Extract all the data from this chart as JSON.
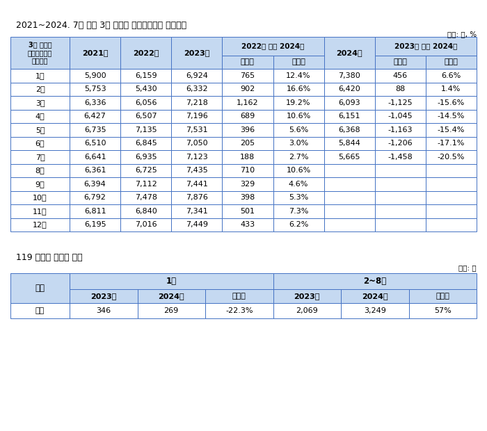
{
  "title1": "2021~2024. 7월 월별 3대 급성기 중증응급질환 진료건수",
  "unit1": "단위: 건, %",
  "title2": "119 구급대 재이송 현황",
  "unit2": "단위: 건",
  "header_col0": "3대 급성기\n중증응급환자\n진료건수",
  "header_yr2021": "2021년",
  "header_yr2022": "2022년",
  "header_yr2023": "2023년",
  "header_group1": "2022년 대비 2024년",
  "header_g1c1": "증감치",
  "header_g1c2": "증감률",
  "header_yr2024": "2024년",
  "header_group2": "2023년 대비 2024년",
  "header_g2c1": "증감치",
  "header_g2c2": "증감률",
  "table1_data": [
    [
      "1월",
      "5,900",
      "6,159",
      "6,924",
      "765",
      "12.4%",
      "7,380",
      "456",
      "6.6%"
    ],
    [
      "2월",
      "5,753",
      "5,430",
      "6,332",
      "902",
      "16.6%",
      "6,420",
      "88",
      "1.4%"
    ],
    [
      "3월",
      "6,336",
      "6,056",
      "7,218",
      "1,162",
      "19.2%",
      "6,093",
      "-1,125",
      "-15.6%"
    ],
    [
      "4월",
      "6,427",
      "6,507",
      "7,196",
      "689",
      "10.6%",
      "6,151",
      "-1,045",
      "-14.5%"
    ],
    [
      "5월",
      "6,735",
      "7,135",
      "7,531",
      "396",
      "5.6%",
      "6,368",
      "-1,163",
      "-15.4%"
    ],
    [
      "6월",
      "6,510",
      "6,845",
      "7,050",
      "205",
      "3.0%",
      "5,844",
      "-1,206",
      "-17.1%"
    ],
    [
      "7월",
      "6,641",
      "6,935",
      "7,123",
      "188",
      "2.7%",
      "5,665",
      "-1,458",
      "-20.5%"
    ],
    [
      "8월",
      "6,361",
      "6,725",
      "7,435",
      "710",
      "10.6%",
      "",
      "",
      ""
    ],
    [
      "9월",
      "6,394",
      "7,112",
      "7,441",
      "329",
      "4.6%",
      "",
      "",
      ""
    ],
    [
      "10월",
      "6,792",
      "7,478",
      "7,876",
      "398",
      "5.3%",
      "",
      "",
      ""
    ],
    [
      "11월",
      "6,811",
      "6,840",
      "7,341",
      "501",
      "7.3%",
      "",
      "",
      ""
    ],
    [
      "12월",
      "6,195",
      "7,016",
      "7,449",
      "433",
      "6.2%",
      "",
      "",
      ""
    ]
  ],
  "t2_header_cat": "구분",
  "t2_group1": "1월",
  "t2_group2": "2~8월",
  "t2_subheaders": [
    "2023년",
    "2024년",
    "증감률",
    "2023년",
    "2024년",
    "증감률"
  ],
  "table2_data": [
    "전체",
    "346",
    "269",
    "-22.3%",
    "2,069",
    "3,249",
    "57%"
  ],
  "header_bg": "#C5D9F1",
  "cell_bg": "#FFFFFF",
  "border_color": "#4472C4",
  "text_color": "#000000"
}
